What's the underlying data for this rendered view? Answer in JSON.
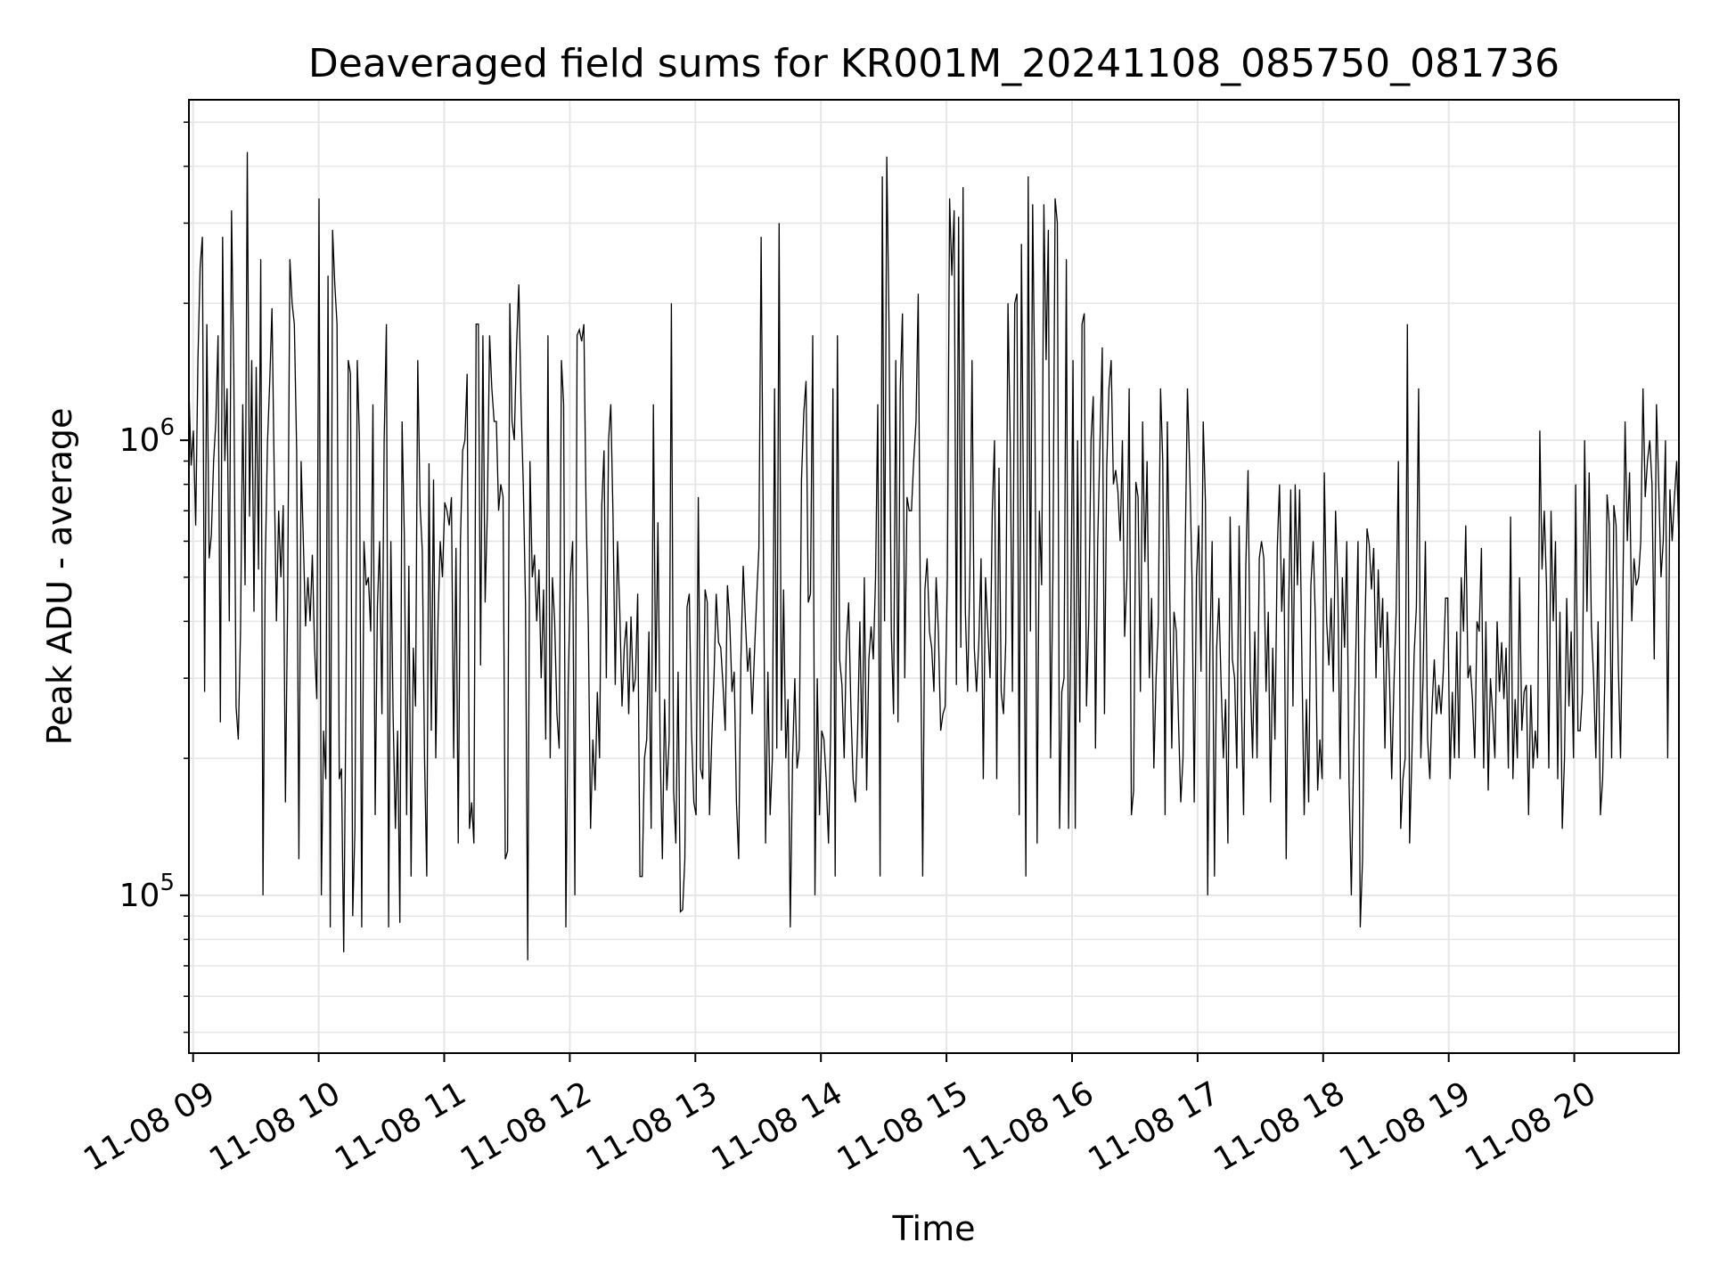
{
  "chart_data": {
    "type": "line",
    "title": "Deaveraged field sums for KR001M_20241108_085750_081736",
    "xlabel": "Time",
    "ylabel": "Peak ADU - average",
    "yscale": "log",
    "ylim": [
      45000,
      5600000
    ],
    "xlim": [
      "2024-11-08T08:58",
      "2024-11-08T20:50"
    ],
    "grid": true,
    "line_color": "#000000",
    "x_ticks": [
      "11-08 09",
      "11-08 10",
      "11-08 11",
      "11-08 12",
      "11-08 13",
      "11-08 14",
      "11-08 15",
      "11-08 16",
      "11-08 17",
      "11-08 18",
      "11-08 19",
      "11-08 20"
    ],
    "y_ticks": [
      {
        "base": "10",
        "exp": "5"
      },
      {
        "base": "10",
        "exp": "6"
      }
    ],
    "series": [
      {
        "x_start": "2024-11-08T08:58",
        "x_end": "2024-11-08T20:50",
        "values": [
          1300000,
          880000,
          1050000,
          650000,
          1500000,
          2400000,
          2800000,
          280000,
          1800000,
          550000,
          620000,
          900000,
          1100000,
          1700000,
          240000,
          2800000,
          900000,
          1300000,
          400000,
          3200000,
          1400000,
          260000,
          220000,
          380000,
          1200000,
          480000,
          4300000,
          680000,
          1500000,
          420000,
          1450000,
          520000,
          2500000,
          100000,
          520000,
          980000,
          1350000,
          1950000,
          850000,
          400000,
          700000,
          500000,
          720000,
          160000,
          450000,
          2500000,
          2000000,
          1800000,
          950000,
          120000,
          900000,
          600000,
          390000,
          500000,
          400000,
          560000,
          350000,
          270000,
          3400000,
          100000,
          230000,
          180000,
          2300000,
          85000,
          2900000,
          2200000,
          1800000,
          180000,
          190000,
          75000,
          280000,
          1500000,
          1400000,
          90000,
          140000,
          1500000,
          1000000,
          85000,
          600000,
          480000,
          500000,
          380000,
          1200000,
          150000,
          430000,
          600000,
          250000,
          1000000,
          1800000,
          85000,
          600000,
          250000,
          140000,
          230000,
          87000,
          1100000,
          620000,
          150000,
          530000,
          110000,
          350000,
          260000,
          1500000,
          720000,
          570000,
          200000,
          110000,
          890000,
          230000,
          820000,
          200000,
          400000,
          600000,
          500000,
          730000,
          700000,
          650000,
          750000,
          200000,
          580000,
          130000,
          600000,
          950000,
          1000000,
          1400000,
          140000,
          160000,
          130000,
          1800000,
          1800000,
          320000,
          1700000,
          440000,
          700000,
          1700000,
          1300000,
          1100000,
          1100000,
          700000,
          800000,
          750000,
          120000,
          125000,
          2000000,
          1100000,
          1000000,
          1600000,
          2200000,
          1200000,
          800000,
          440000,
          72000,
          900000,
          500000,
          560000,
          400000,
          520000,
          300000,
          470000,
          220000,
          1700000,
          200000,
          500000,
          400000,
          250000,
          210000,
          1500000,
          1200000,
          85000,
          290000,
          500000,
          600000,
          100000,
          1700000,
          1750000,
          1650000,
          1800000,
          700000,
          390000,
          140000,
          220000,
          170000,
          280000,
          200000,
          720000,
          950000,
          300000,
          1000000,
          1200000,
          680000,
          290000,
          600000,
          420000,
          260000,
          350000,
          400000,
          250000,
          410000,
          280000,
          300000,
          460000,
          110000,
          110000,
          200000,
          220000,
          380000,
          140000,
          1200000,
          280000,
          660000,
          210000,
          120000,
          270000,
          170000,
          220000,
          2000000,
          170000,
          130000,
          310000,
          92000,
          93000,
          120000,
          430000,
          460000,
          230000,
          160000,
          150000,
          750000,
          190000,
          180000,
          470000,
          440000,
          150000,
          220000,
          300000,
          460000,
          360000,
          350000,
          290000,
          230000,
          480000,
          400000,
          280000,
          310000,
          160000,
          120000,
          330000,
          530000,
          400000,
          310000,
          350000,
          250000,
          340000,
          450000,
          580000,
          2800000,
          600000,
          130000,
          310000,
          150000,
          200000,
          1300000,
          210000,
          3000000,
          230000,
          470000,
          200000,
          270000,
          85000,
          200000,
          300000,
          190000,
          210000,
          820000,
          1150000,
          1350000,
          440000,
          460000,
          1700000,
          100000,
          300000,
          150000,
          230000,
          220000,
          180000,
          130000,
          230000,
          1300000,
          110000,
          1700000,
          330000,
          290000,
          200000,
          360000,
          440000,
          260000,
          180000,
          160000,
          230000,
          400000,
          200000,
          500000,
          170000,
          330000,
          390000,
          330000,
          500000,
          1200000,
          110000,
          3800000,
          400000,
          4200000,
          1800000,
          380000,
          250000,
          1500000,
          240000,
          1300000,
          1900000,
          300000,
          750000,
          700000,
          700000,
          900000,
          1100000,
          2100000,
          400000,
          110000,
          470000,
          550000,
          380000,
          350000,
          280000,
          500000,
          380000,
          230000,
          250000,
          260000,
          500000,
          3400000,
          2300000,
          3200000,
          290000,
          3100000,
          350000,
          3600000,
          420000,
          280000,
          500000,
          1500000,
          350000,
          280000,
          360000,
          550000,
          180000,
          500000,
          390000,
          300000,
          700000,
          1000000,
          180000,
          870000,
          280000,
          250000,
          360000,
          2000000,
          1000000,
          280000,
          2000000,
          2100000,
          150000,
          2700000,
          620000,
          110000,
          3800000,
          380000,
          3300000,
          1200000,
          130000,
          700000,
          480000,
          3300000,
          1500000,
          2900000,
          200000,
          500000,
          3400000,
          3000000,
          140000,
          280000,
          300000,
          2500000,
          140000,
          400000,
          1500000,
          140000,
          1000000,
          240000,
          1800000,
          1900000,
          260000,
          400000,
          1000000,
          1250000,
          210000,
          600000,
          980000,
          1600000,
          250000,
          870000,
          1300000,
          1500000,
          800000,
          860000,
          770000,
          600000,
          1000000,
          370000,
          500000,
          1300000,
          150000,
          170000,
          810000,
          750000,
          280000,
          1100000,
          540000,
          900000,
          300000,
          450000,
          190000,
          300000,
          400000,
          1300000,
          900000,
          150000,
          1100000,
          500000,
          210000,
          420000,
          380000,
          240000,
          160000,
          200000,
          580000,
          1300000,
          860000,
          500000,
          160000,
          500000,
          650000,
          310000,
          1100000,
          730000,
          100000,
          350000,
          600000,
          110000,
          350000,
          450000,
          290000,
          200000,
          270000,
          130000,
          680000,
          330000,
          300000,
          190000,
          650000,
          270000,
          150000,
          530000,
          860000,
          300000,
          200000,
          380000,
          200000,
          550000,
          600000,
          550000,
          280000,
          420000,
          160000,
          350000,
          220000,
          580000,
          800000,
          420000,
          550000,
          120000,
          410000,
          780000,
          260000,
          800000,
          480000,
          780000,
          320000,
          150000,
          270000,
          160000,
          480000,
          600000,
          400000,
          170000,
          220000,
          180000,
          850000,
          400000,
          320000,
          450000,
          280000,
          700000,
          470000,
          180000,
          500000,
          350000,
          600000,
          180000,
          100000,
          200000,
          340000,
          600000,
          85000,
          120000,
          370000,
          640000,
          590000,
          470000,
          580000,
          300000,
          520000,
          350000,
          450000,
          210000,
          420000,
          300000,
          180000,
          290000,
          420000,
          900000,
          140000,
          180000,
          200000,
          1800000,
          130000,
          200000,
          340000,
          430000,
          1300000,
          200000,
          300000,
          600000,
          220000,
          180000,
          260000,
          330000,
          250000,
          290000,
          250000,
          310000,
          450000,
          450000,
          180000,
          280000,
          200000,
          380000,
          200000,
          500000,
          380000,
          650000,
          300000,
          320000,
          270000,
          200000,
          400000,
          380000,
          580000,
          190000,
          400000,
          170000,
          300000,
          250000,
          200000,
          400000,
          280000,
          360000,
          270000,
          350000,
          190000,
          680000,
          180000,
          270000,
          200000,
          500000,
          230000,
          280000,
          290000,
          150000,
          290000,
          190000,
          230000,
          200000,
          1050000,
          520000,
          700000,
          480000,
          190000,
          700000,
          400000,
          600000,
          180000,
          420000,
          140000,
          200000,
          450000,
          260000,
          380000,
          200000,
          800000,
          230000,
          230000,
          280000,
          1000000,
          420000,
          850000,
          390000,
          300000,
          200000,
          400000,
          150000,
          180000,
          300000,
          760000,
          650000,
          200000,
          720000,
          650000,
          320000,
          200000,
          450000,
          1100000,
          600000,
          850000,
          400000,
          550000,
          480000,
          500000,
          600000,
          1300000,
          750000,
          900000,
          1000000,
          800000,
          330000,
          1200000,
          800000,
          500000,
          600000,
          1000000,
          200000,
          780000,
          600000,
          750000,
          900000,
          600000
        ]
      }
    ]
  }
}
